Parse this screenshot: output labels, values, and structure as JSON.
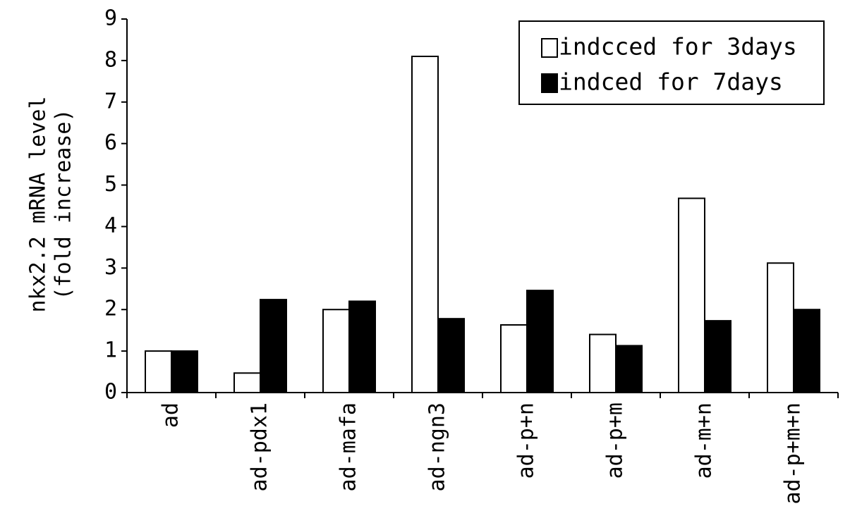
{
  "chart_data": {
    "type": "bar",
    "ylabel": [
      "nkx2.2 mRNA level",
      "(fold increase)"
    ],
    "categories": [
      "ad",
      "ad-pdx1",
      "ad-mafa",
      "ad-ngn3",
      "ad-p+n",
      "ad-p+m",
      "ad-m+n",
      "ad-p+m+n"
    ],
    "series": [
      {
        "name": "indcced for 3days",
        "color": "#ffffff",
        "values": [
          1.0,
          0.47,
          2.0,
          8.1,
          1.63,
          1.4,
          4.68,
          3.12
        ]
      },
      {
        "name": "indced for 7days",
        "color": "#000000",
        "values": [
          1.0,
          2.24,
          2.2,
          1.78,
          2.46,
          1.13,
          1.73,
          2.0
        ]
      }
    ],
    "ylim": [
      0,
      9
    ],
    "yticks": [
      0,
      1,
      2,
      3,
      4,
      5,
      6,
      7,
      8,
      9
    ],
    "legend": "upper right",
    "grid": false
  }
}
